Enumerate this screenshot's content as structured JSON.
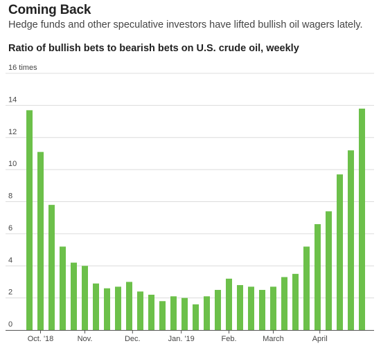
{
  "header": {
    "title": "Coming Back",
    "subtitle": "Hedge funds and other speculative investors have lifted bullish oil wagers lately.",
    "chart_title": "Ratio of bullish bets to bearish bets on U.S. crude oil, weekly"
  },
  "colors": {
    "bar": "#6cc04a",
    "grid": "#dcdcdc",
    "axis": "#555555"
  },
  "chart_data": {
    "type": "bar",
    "title": "Ratio of bullish bets to bearish bets on U.S. crude oil, weekly",
    "ylabel": "",
    "xlabel": "",
    "ylim": [
      0,
      16
    ],
    "y_unit_label": "times",
    "y_ticks": [
      0,
      2,
      4,
      6,
      8,
      10,
      12,
      14,
      16
    ],
    "y_tick_labels": [
      "0",
      "2",
      "4",
      "6",
      "8",
      "10",
      "12",
      "14",
      "16 times"
    ],
    "x_tick_labels": [
      {
        "label": "Oct. '18",
        "at_bar": 1
      },
      {
        "label": "Nov.",
        "at_bar": 5
      },
      {
        "label": "Dec.",
        "at_bar": 9.3
      },
      {
        "label": "Jan. '19",
        "at_bar": 13.7
      },
      {
        "label": "Feb.",
        "at_bar": 18
      },
      {
        "label": "March",
        "at_bar": 22
      },
      {
        "label": "April",
        "at_bar": 26.2
      }
    ],
    "values": [
      13.7,
      11.1,
      7.8,
      5.2,
      4.2,
      4.0,
      2.9,
      2.6,
      2.7,
      3.0,
      2.4,
      2.2,
      1.8,
      2.1,
      2.0,
      1.6,
      2.1,
      2.5,
      3.2,
      2.8,
      2.7,
      2.5,
      2.7,
      3.3,
      3.5,
      5.2,
      6.6,
      7.4,
      9.7,
      11.2,
      13.8
    ],
    "grid": true,
    "legend": "none"
  }
}
